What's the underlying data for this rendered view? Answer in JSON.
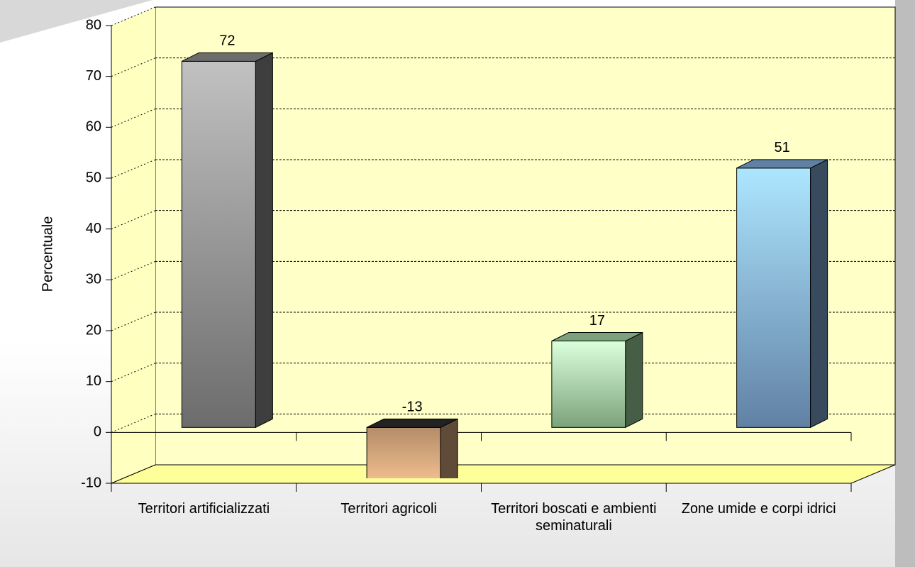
{
  "chart_data": {
    "type": "bar3d",
    "y_label": "Percentuale",
    "categories": [
      "Territori artificializzati",
      "Territori agricoli",
      "Territori boscati e ambienti seminaturali",
      "Zone umide e corpi idrici"
    ],
    "values": [
      72,
      -13,
      17,
      51
    ],
    "colors": [
      "#9a9a9a",
      "#f0bb8c",
      "#b0e8b0",
      "#8ab8ea"
    ],
    "ylim": [
      -10,
      80
    ],
    "yticks": [
      -10,
      0,
      10,
      20,
      30,
      40,
      50,
      60,
      70,
      80
    ],
    "grid": true
  }
}
